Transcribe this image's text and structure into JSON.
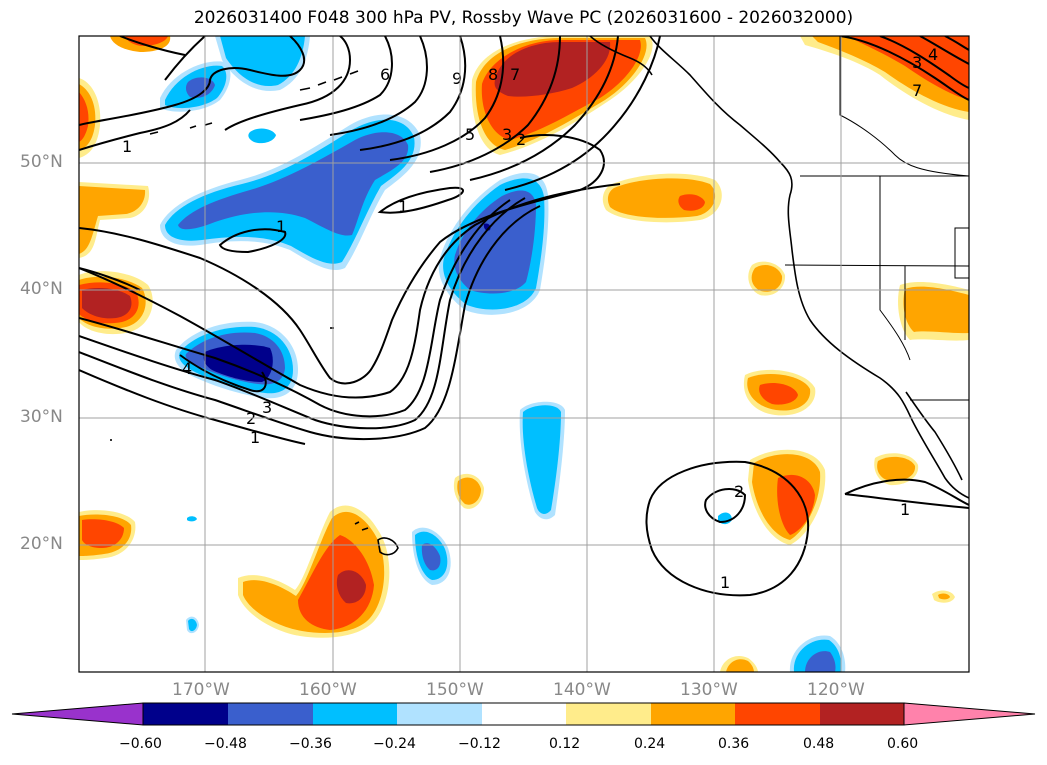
{
  "title": "2026031400 F048 300 hPa PV, Rossby Wave PC (2026031600 - 2026032000)",
  "latitude_labels": [
    "50°N",
    "40°N",
    "30°N",
    "20°N"
  ],
  "longitude_labels": [
    "170°W",
    "160°W",
    "150°W",
    "140°W",
    "130°W",
    "120°W"
  ],
  "colorbar": {
    "ticks": [
      "−0.60",
      "−0.48",
      "−0.36",
      "−0.24",
      "−0.12",
      "0.12",
      "0.24",
      "0.36",
      "0.48",
      "0.60"
    ],
    "colors": [
      "#9932cc",
      "#00008b",
      "#3a5fcd",
      "#00bfff",
      "#b0e2ff",
      "#ffffff",
      "#ffec8b",
      "#ffa500",
      "#ff4500",
      "#b22222",
      "#ff82ab"
    ]
  },
  "contour_labels": [
    "1",
    "1",
    "1",
    "1",
    "1",
    "2",
    "3",
    "4",
    "5",
    "6",
    "7",
    "8",
    "9",
    "3",
    "2",
    "7",
    "3",
    "4",
    "2",
    "1"
  ]
}
